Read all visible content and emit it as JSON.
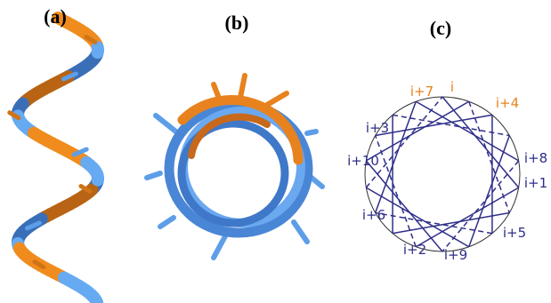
{
  "panel_labels": [
    "(a)",
    "(b)",
    "(c)"
  ],
  "wheel": {
    "labels": [
      "i",
      "i+7",
      "i+4",
      "i+3",
      "i+8",
      "i+10",
      "i+1",
      "i+6",
      "i+5",
      "i+2",
      "i+9"
    ]
  }
}
